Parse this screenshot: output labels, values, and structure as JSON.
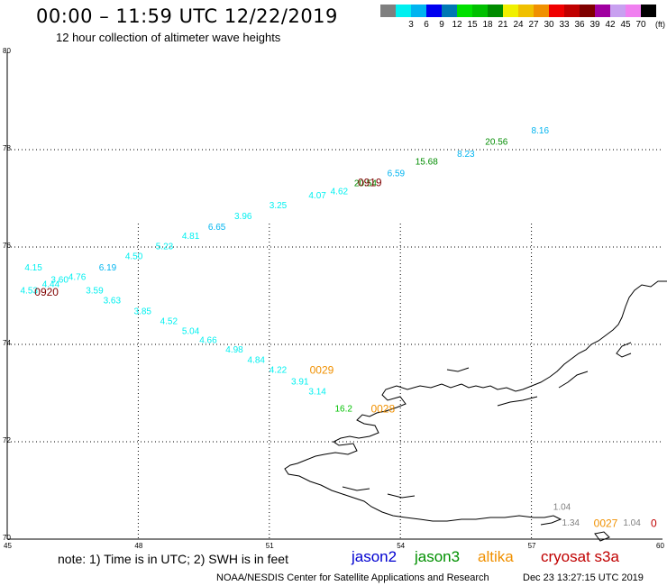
{
  "header": {
    "title": "00:00 – 11:59 UTC 12/22/2019",
    "subtitle": "12 hour collection of altimeter wave heights"
  },
  "color_scale": {
    "unit": "(ft)",
    "swatches": [
      {
        "color": "#7f7f7f",
        "label": ""
      },
      {
        "color": "#00f0f0",
        "label": "3"
      },
      {
        "color": "#00b4f0",
        "label": "6"
      },
      {
        "color": "#0000f0",
        "label": "9"
      },
      {
        "color": "#0078b4",
        "label": "12"
      },
      {
        "color": "#00e000",
        "label": "15"
      },
      {
        "color": "#00c000",
        "label": "18"
      },
      {
        "color": "#008c00",
        "label": "21"
      },
      {
        "color": "#f0f000",
        "label": "24"
      },
      {
        "color": "#f0c000",
        "label": "27"
      },
      {
        "color": "#f09000",
        "label": "30"
      },
      {
        "color": "#f00000",
        "label": "33"
      },
      {
        "color": "#c00000",
        "label": "36"
      },
      {
        "color": "#7f0000",
        "label": "39"
      },
      {
        "color": "#a000a0",
        "label": "42"
      },
      {
        "color": "#c8a0f0",
        "label": "45"
      },
      {
        "color": "#f080f0",
        "label": "70"
      },
      {
        "color": "#000000",
        "label": ""
      }
    ]
  },
  "map": {
    "lat_range": [
      70,
      80
    ],
    "lon_range": [
      45,
      60
    ],
    "lat_ticks": [
      "80",
      "78",
      "76",
      "74",
      "72",
      "70"
    ],
    "lon_ticks": [
      "45",
      "48",
      "51",
      "54",
      "57",
      "60"
    ],
    "grid": true,
    "grid_lats": [
      78,
      76,
      74,
      72
    ],
    "grid_lons": [
      48,
      51,
      54,
      57
    ]
  },
  "observations": [
    {
      "lat": 78.33,
      "lon": 57.2,
      "value": "8.16",
      "color": "#00b4f0"
    },
    {
      "lat": 78.1,
      "lon": 56.2,
      "value": "20.56",
      "color": "#008c00"
    },
    {
      "lat": 77.85,
      "lon": 55.5,
      "value": "8.23",
      "color": "#00b4f0"
    },
    {
      "lat": 77.69,
      "lon": 54.6,
      "value": "15.68",
      "color": "#008c00"
    },
    {
      "lat": 77.45,
      "lon": 53.9,
      "value": "6.59",
      "color": "#00b4f0"
    },
    {
      "lat": 77.25,
      "lon": 53.2,
      "value": "20.54",
      "color": "#008c00"
    },
    {
      "lat": 77.08,
      "lon": 52.6,
      "value": "4.62",
      "color": "#00f0f0"
    },
    {
      "lat": 77.0,
      "lon": 52.1,
      "value": "4.07",
      "color": "#00f0f0"
    },
    {
      "lat": 76.8,
      "lon": 51.2,
      "value": "3.25",
      "color": "#00f0f0"
    },
    {
      "lat": 76.57,
      "lon": 50.4,
      "value": "3.96",
      "color": "#00f0f0"
    },
    {
      "lat": 76.35,
      "lon": 49.8,
      "value": "6.65",
      "color": "#00b4f0"
    },
    {
      "lat": 76.17,
      "lon": 49.2,
      "value": "4.81",
      "color": "#00f0f0"
    },
    {
      "lat": 75.95,
      "lon": 48.6,
      "value": "5.23",
      "color": "#00f0f0"
    },
    {
      "lat": 75.75,
      "lon": 47.9,
      "value": "4.50",
      "color": "#00f0f0"
    },
    {
      "lat": 75.52,
      "lon": 47.3,
      "value": "6.19",
      "color": "#00b4f0"
    },
    {
      "lat": 75.32,
      "lon": 46.6,
      "value": "4.76",
      "color": "#00f0f0"
    },
    {
      "lat": 75.52,
      "lon": 45.6,
      "value": "4.15",
      "color": "#00f0f0"
    },
    {
      "lat": 75.27,
      "lon": 46.2,
      "value": "3.60",
      "color": "#00f0f0"
    },
    {
      "lat": 75.18,
      "lon": 46.0,
      "value": "4.44",
      "color": "#00f0f0"
    },
    {
      "lat": 75.05,
      "lon": 45.5,
      "value": "4.53",
      "color": "#00f0f0"
    },
    {
      "lat": 75.05,
      "lon": 47.0,
      "value": "3.59",
      "color": "#00f0f0"
    },
    {
      "lat": 74.84,
      "lon": 47.4,
      "value": "3.63",
      "color": "#00f0f0"
    },
    {
      "lat": 74.62,
      "lon": 48.1,
      "value": "3.85",
      "color": "#00f0f0"
    },
    {
      "lat": 74.42,
      "lon": 48.7,
      "value": "4.52",
      "color": "#00f0f0"
    },
    {
      "lat": 74.21,
      "lon": 49.2,
      "value": "5.04",
      "color": "#00f0f0"
    },
    {
      "lat": 74.03,
      "lon": 49.6,
      "value": "4.66",
      "color": "#00f0f0"
    },
    {
      "lat": 73.83,
      "lon": 50.2,
      "value": "4.98",
      "color": "#00f0f0"
    },
    {
      "lat": 73.62,
      "lon": 50.7,
      "value": "4.84",
      "color": "#00f0f0"
    },
    {
      "lat": 73.42,
      "lon": 51.2,
      "value": "4.22",
      "color": "#00f0f0"
    },
    {
      "lat": 73.18,
      "lon": 51.7,
      "value": "3.91",
      "color": "#00f0f0"
    },
    {
      "lat": 72.97,
      "lon": 52.1,
      "value": "3.14",
      "color": "#00f0f0"
    },
    {
      "lat": 72.62,
      "lon": 52.7,
      "value": "16.2",
      "color": "#00c000"
    },
    {
      "lat": 70.6,
      "lon": 57.7,
      "value": "1.04",
      "color": "#7f7f7f"
    },
    {
      "lat": 70.28,
      "lon": 57.9,
      "value": "1.34",
      "color": "#7f7f7f"
    },
    {
      "lat": 70.28,
      "lon": 59.3,
      "value": "1.04",
      "color": "#7f7f7f"
    }
  ],
  "time_labels": [
    {
      "lat": 77.25,
      "lon": 53.3,
      "text": "0919",
      "color": "#7f0000"
    },
    {
      "lat": 75.0,
      "lon": 45.9,
      "text": "0920",
      "color": "#7f0000"
    },
    {
      "lat": 73.4,
      "lon": 52.2,
      "text": "0029",
      "color": "#f09000"
    },
    {
      "lat": 72.6,
      "lon": 53.6,
      "text": "0028",
      "color": "#f09000"
    },
    {
      "lat": 70.25,
      "lon": 58.7,
      "text": "0027",
      "color": "#f09000"
    },
    {
      "lat": 70.25,
      "lon": 59.8,
      "text": "0",
      "color": "#c00000"
    }
  ],
  "note": "note: 1) Time is in UTC; 2) SWH is in feet",
  "satellites": [
    {
      "name": "jason2",
      "color": "#0000d0"
    },
    {
      "name": "jason3",
      "color": "#009000"
    },
    {
      "name": "altika",
      "color": "#f09000"
    },
    {
      "name": "cryosat s3a",
      "color": "#c00000"
    }
  ],
  "footer": {
    "credit": "NOAA/NESDIS Center for Satellite Applications and Research",
    "timestamp": "Dec 23 13:27:15 UTC 2019"
  }
}
